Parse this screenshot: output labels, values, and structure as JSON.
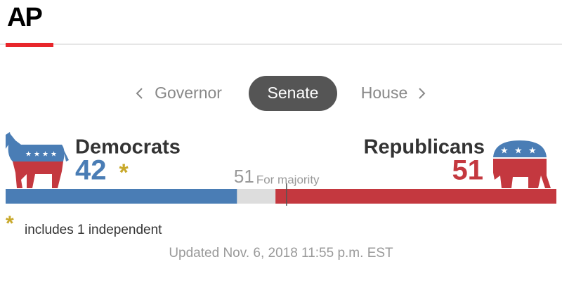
{
  "header": {
    "logo": "AP"
  },
  "tabs": [
    {
      "label": "Governor"
    },
    {
      "label": "Senate",
      "active": true
    },
    {
      "label": "House"
    }
  ],
  "chart_data": {
    "type": "seat-bar",
    "xlim": [
      0,
      100
    ],
    "majority": 51,
    "majority_label": "For majority",
    "series": [
      {
        "name": "Democrats",
        "value": 42,
        "color": "#4a7db5",
        "note_marker": "*"
      },
      {
        "name": "Republicans",
        "value": 51,
        "color": "#c4383f"
      }
    ],
    "footnote": {
      "marker": "*",
      "text": "includes 1 independent"
    }
  },
  "updated": "Updated Nov. 6, 2018 11:55 p.m. EST"
}
